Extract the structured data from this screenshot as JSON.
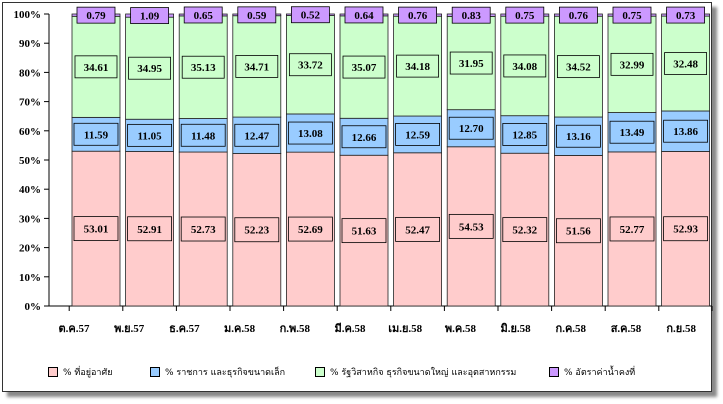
{
  "chart_data": {
    "type": "bar",
    "stacked": "percent",
    "ylim": [
      0,
      100
    ],
    "ytick_labels": [
      "0%",
      "10%",
      "20%",
      "30%",
      "40%",
      "50%",
      "60%",
      "70%",
      "80%",
      "90%",
      "100%"
    ],
    "grid": false,
    "legend": "bottom",
    "data_labels": true,
    "categories": [
      "ต.ค.57",
      "พ.ย.57",
      "ธ.ค.57",
      "ม.ค.58",
      "ก.พ.58",
      "มี.ค.58",
      "เม.ย.58",
      "พ.ค.58",
      "มิ.ย.58",
      "ก.ค.58",
      "ส.ค.58",
      "ก.ย.58"
    ],
    "series": [
      {
        "name": "% ที่อยู่อาศัย",
        "color": "#FFCCCC",
        "values": [
          53.01,
          52.91,
          52.73,
          52.23,
          52.69,
          51.63,
          52.47,
          54.53,
          52.32,
          51.56,
          52.77,
          52.93
        ]
      },
      {
        "name": "% ราชการ และธุรกิจขนาดเล็ก",
        "color": "#99CCFF",
        "values": [
          11.59,
          11.05,
          11.48,
          12.47,
          13.08,
          12.66,
          12.59,
          12.7,
          12.85,
          13.16,
          13.49,
          13.86
        ]
      },
      {
        "name": "% รัฐวิสาหกิจ ธุรกิจขนาดใหญ่ และอุตสาหกรรม",
        "color": "#CCFFCC",
        "values": [
          34.61,
          34.95,
          35.13,
          34.71,
          33.72,
          35.07,
          34.18,
          31.95,
          34.08,
          34.52,
          32.99,
          32.48
        ]
      },
      {
        "name": "% อัตราค่าน้ำคงที่",
        "color": "#CC99FF",
        "values": [
          0.79,
          1.09,
          0.65,
          0.59,
          0.52,
          0.64,
          0.76,
          0.83,
          0.75,
          0.76,
          0.75,
          0.73
        ]
      }
    ]
  }
}
